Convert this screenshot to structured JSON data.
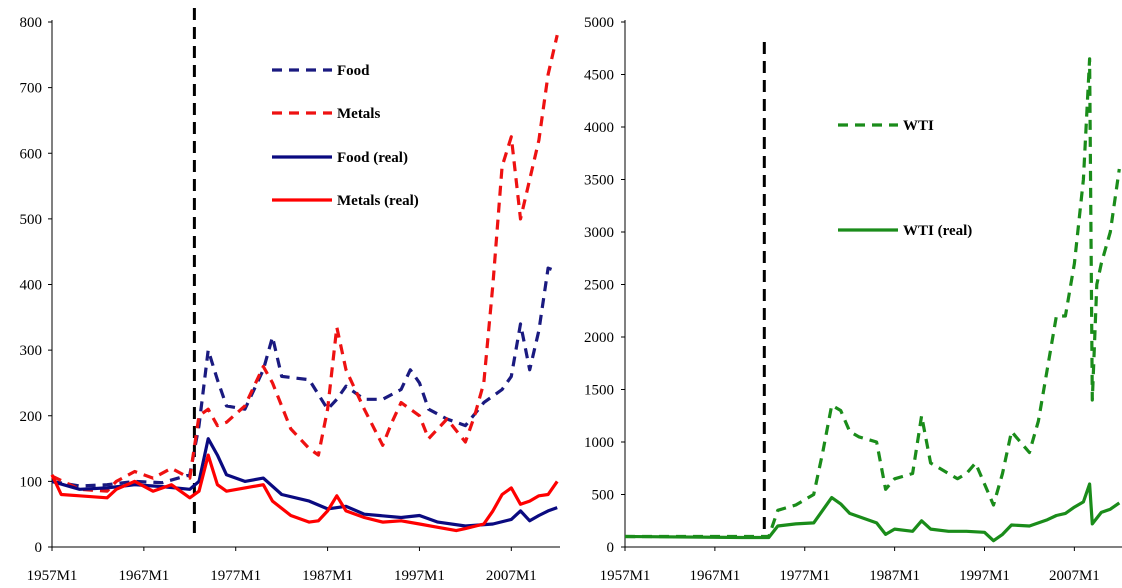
{
  "chart_data": [
    {
      "type": "line",
      "title": "",
      "xlabel": "",
      "ylabel": "",
      "ylim": [
        0,
        800
      ],
      "y_ticks": [
        "0",
        "100",
        "200",
        "300",
        "400",
        "500",
        "600",
        "700",
        "800"
      ],
      "x_ticks": [
        "1957M1",
        "1967M1",
        "1977M1",
        "1987M1",
        "1997M1",
        "2007M1"
      ],
      "x_range_years": [
        1957,
        2012.3
      ],
      "vertical_marker_year": 1972.5,
      "legend": {
        "placement": "top-center"
      },
      "series": [
        {
          "name": "Food",
          "style": "dashed",
          "color": "#1a1a80",
          "x": [
            1957,
            1960,
            1963,
            1966,
            1969,
            1972,
            1973,
            1974,
            1975,
            1976,
            1978,
            1980,
            1981,
            1982,
            1985,
            1987,
            1988,
            1989,
            1991,
            1993,
            1995,
            1996,
            1997,
            1998,
            2000,
            2002,
            2004,
            2006,
            2007,
            2008,
            2009,
            2010,
            2011,
            2012
          ],
          "y": [
            100,
            93,
            95,
            100,
            98,
            110,
            185,
            300,
            255,
            215,
            210,
            270,
            320,
            260,
            255,
            210,
            225,
            245,
            225,
            225,
            240,
            270,
            250,
            210,
            195,
            185,
            220,
            240,
            260,
            340,
            270,
            330,
            425,
            420
          ]
        },
        {
          "name": "Metals",
          "style": "dashed",
          "color": "#ee1111",
          "x": [
            1957,
            1960,
            1963,
            1964,
            1966,
            1968,
            1970,
            1972,
            1973,
            1974,
            1975,
            1976,
            1978,
            1980,
            1981,
            1983,
            1985,
            1986,
            1987,
            1988,
            1989,
            1991,
            1993,
            1994,
            1995,
            1997,
            1998,
            2000,
            2002,
            2003,
            2004,
            2005,
            2006,
            2007,
            2008,
            2009,
            2010,
            2011,
            2012
          ],
          "y": [
            108,
            88,
            85,
            100,
            115,
            105,
            120,
            105,
            200,
            210,
            185,
            190,
            215,
            275,
            250,
            180,
            150,
            140,
            210,
            335,
            270,
            210,
            155,
            190,
            220,
            200,
            165,
            195,
            160,
            200,
            250,
            400,
            580,
            625,
            500,
            560,
            620,
            720,
            780
          ]
        },
        {
          "name": "Food (real)",
          "style": "solid",
          "color": "#0a0a80",
          "x": [
            1957,
            1960,
            1963,
            1966,
            1969,
            1972,
            1973,
            1974,
            1975,
            1976,
            1978,
            1980,
            1982,
            1985,
            1987,
            1989,
            1991,
            1995,
            1997,
            1999,
            2002,
            2005,
            2007,
            2008,
            2009,
            2010,
            2011,
            2012
          ],
          "y": [
            100,
            88,
            90,
            95,
            92,
            88,
            100,
            165,
            140,
            110,
            100,
            105,
            80,
            70,
            58,
            62,
            50,
            45,
            48,
            38,
            32,
            35,
            42,
            55,
            40,
            48,
            55,
            60
          ]
        },
        {
          "name": "Metals (real)",
          "style": "solid",
          "color": "#ff0000",
          "x": [
            1957,
            1958,
            1960,
            1963,
            1964,
            1966,
            1968,
            1970,
            1972,
            1973,
            1974,
            1975,
            1976,
            1978,
            1980,
            1981,
            1983,
            1985,
            1986,
            1987,
            1988,
            1989,
            1991,
            1993,
            1995,
            1997,
            1999,
            2001,
            2002,
            2004,
            2005,
            2006,
            2007,
            2008,
            2009,
            2010,
            2011,
            2012
          ],
          "y": [
            110,
            80,
            78,
            75,
            88,
            100,
            85,
            95,
            75,
            85,
            140,
            95,
            85,
            90,
            95,
            70,
            48,
            38,
            40,
            55,
            78,
            55,
            45,
            38,
            40,
            35,
            30,
            25,
            28,
            35,
            55,
            80,
            90,
            65,
            70,
            78,
            80,
            100
          ]
        }
      ]
    },
    {
      "type": "line",
      "title": "",
      "xlabel": "",
      "ylabel": "",
      "ylim": [
        0,
        5000
      ],
      "y_ticks": [
        "0",
        "500",
        "1000",
        "1500",
        "2000",
        "2500",
        "3000",
        "3500",
        "4000",
        "4500",
        "5000"
      ],
      "x_ticks": [
        "1957M1",
        "1967M1",
        "1977M1",
        "1987M1",
        "1997M1",
        "2007M1"
      ],
      "x_range_years": [
        1957,
        2012.3
      ],
      "vertical_marker_year": 1972.5,
      "legend": {
        "placement": "top-center"
      },
      "series": [
        {
          "name": "WTI",
          "style": "dashed",
          "color": "#1a8c1a",
          "x": [
            1957,
            1970,
            1973,
            1974,
            1976,
            1978,
            1979,
            1980,
            1981,
            1982,
            1983,
            1985,
            1986,
            1987,
            1989,
            1990,
            1991,
            1992,
            1994,
            1995,
            1996,
            1998,
            1999,
            2000,
            2001,
            2002,
            2003,
            2004,
            2005,
            2006,
            2007,
            2008,
            2008.7,
            2009,
            2009.5,
            2010,
            2011,
            2012
          ],
          "y": [
            100,
            100,
            100,
            350,
            400,
            500,
            900,
            1350,
            1300,
            1100,
            1050,
            1000,
            550,
            650,
            700,
            1250,
            800,
            750,
            650,
            700,
            800,
            400,
            700,
            1100,
            1000,
            900,
            1200,
            1700,
            2200,
            2200,
            2700,
            3500,
            4650,
            1400,
            2500,
            2700,
            3000,
            3600
          ]
        },
        {
          "name": "WTI (real)",
          "style": "solid",
          "color": "#1a8c1a",
          "x": [
            1957,
            1970,
            1973,
            1974,
            1976,
            1978,
            1980,
            1981,
            1982,
            1984,
            1985,
            1986,
            1987,
            1989,
            1990,
            1991,
            1993,
            1995,
            1997,
            1998,
            1999,
            2000,
            2002,
            2004,
            2005,
            2006,
            2007,
            2008,
            2008.7,
            2009,
            2010,
            2011,
            2012
          ],
          "y": [
            100,
            90,
            90,
            200,
            220,
            230,
            470,
            410,
            320,
            260,
            230,
            120,
            170,
            150,
            250,
            170,
            150,
            150,
            140,
            60,
            120,
            210,
            200,
            260,
            300,
            320,
            380,
            430,
            600,
            220,
            330,
            360,
            420
          ]
        }
      ]
    }
  ]
}
